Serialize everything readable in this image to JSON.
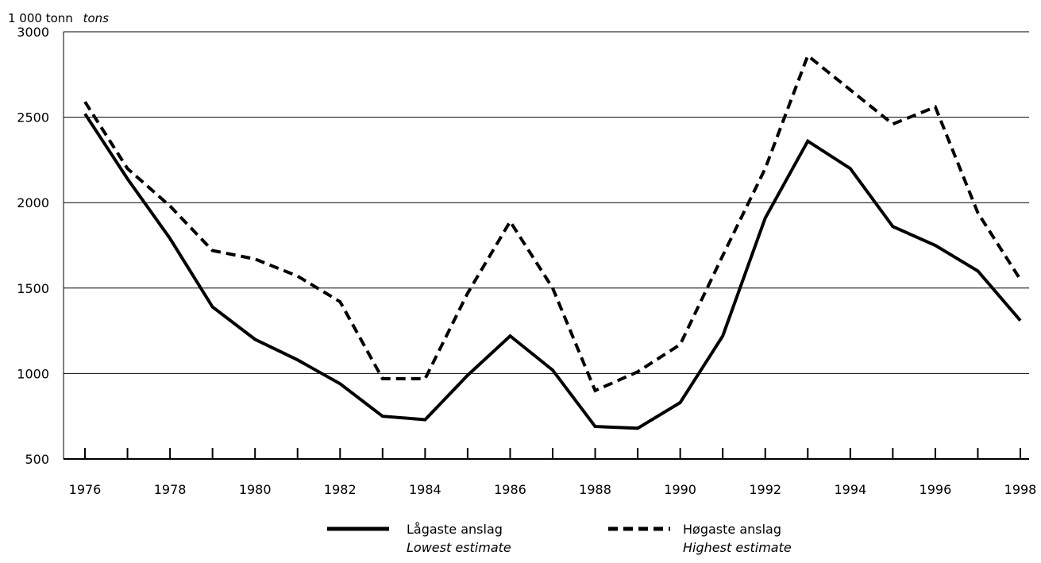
{
  "chart_data": {
    "type": "line",
    "y_unit_label": "1 000 tonn",
    "y_unit_label_en": "tons",
    "x": [
      1976,
      1977,
      1978,
      1979,
      1980,
      1981,
      1982,
      1983,
      1984,
      1985,
      1986,
      1987,
      1988,
      1989,
      1990,
      1991,
      1992,
      1993,
      1994,
      1995,
      1996,
      1997,
      1998
    ],
    "x_tick_labels": [
      "1976",
      "1978",
      "1980",
      "1982",
      "1984",
      "1986",
      "1988",
      "1990",
      "1992",
      "1994",
      "1996",
      "1998"
    ],
    "y_tick_labels": [
      "500",
      "1000",
      "1500",
      "2000",
      "2500",
      "3000"
    ],
    "ylim": [
      500,
      3000
    ],
    "xlim": [
      1976,
      1998
    ],
    "grid": "horizontal",
    "legend_position": "bottom",
    "series": [
      {
        "name": "Lågaste anslag",
        "name_en": "Lowest estimate",
        "style": "solid",
        "color": "#000000",
        "values": [
          2520,
          2140,
          1790,
          1390,
          1200,
          1080,
          940,
          750,
          730,
          990,
          1220,
          1020,
          690,
          680,
          830,
          1220,
          1910,
          2360,
          2200,
          1860,
          1750,
          1600,
          1310
        ]
      },
      {
        "name": "Høgaste anslag",
        "name_en": "Highest estimate",
        "style": "dashed",
        "color": "#000000",
        "values": [
          2590,
          2200,
          1980,
          1720,
          1670,
          1570,
          1420,
          970,
          970,
          1470,
          1890,
          1500,
          900,
          1010,
          1170,
          1690,
          2200,
          2860,
          2660,
          2460,
          2560,
          1940,
          1550
        ]
      }
    ]
  }
}
